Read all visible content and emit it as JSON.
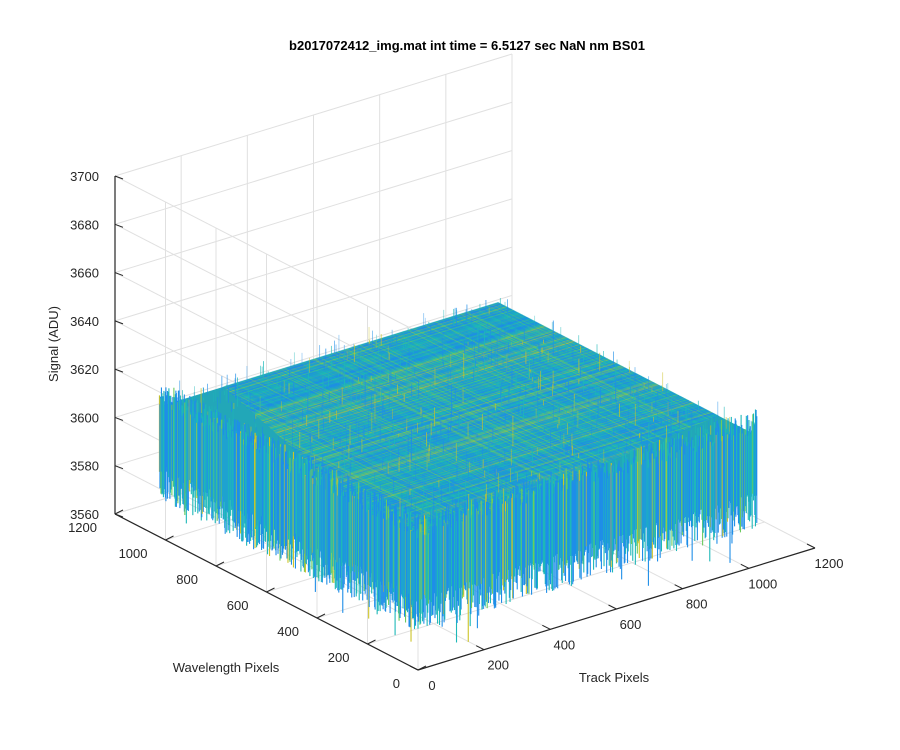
{
  "chart_data": {
    "type": "surface",
    "title": "b2017072412_img.mat int time = 6.5127 sec  NaN nm BS01",
    "xlabel": "Track Pixels",
    "ylabel": "Wavelength Pixels",
    "zlabel": "Signal (ADU)",
    "xlim": [
      0,
      1200
    ],
    "ylim": [
      0,
      1200
    ],
    "zlim": [
      3560,
      3700
    ],
    "xticks": [
      "0",
      "200",
      "400",
      "600",
      "800",
      "1000",
      "1200"
    ],
    "yticks": [
      "0",
      "200",
      "400",
      "600",
      "800",
      "1000",
      "1200"
    ],
    "zticks": [
      "3560",
      "3580",
      "3600",
      "3620",
      "3640",
      "3660",
      "3680",
      "3700"
    ],
    "grid": true,
    "data_extent": {
      "x": [
        0,
        1024
      ],
      "y": [
        0,
        1024
      ]
    },
    "signal_mean": 3608,
    "signal_range": [
      3585,
      3640
    ],
    "colormap": [
      "#3e26a8",
      "#1f8ee8",
      "#1eb8b8",
      "#6ccb5f",
      "#cdc428"
    ]
  }
}
